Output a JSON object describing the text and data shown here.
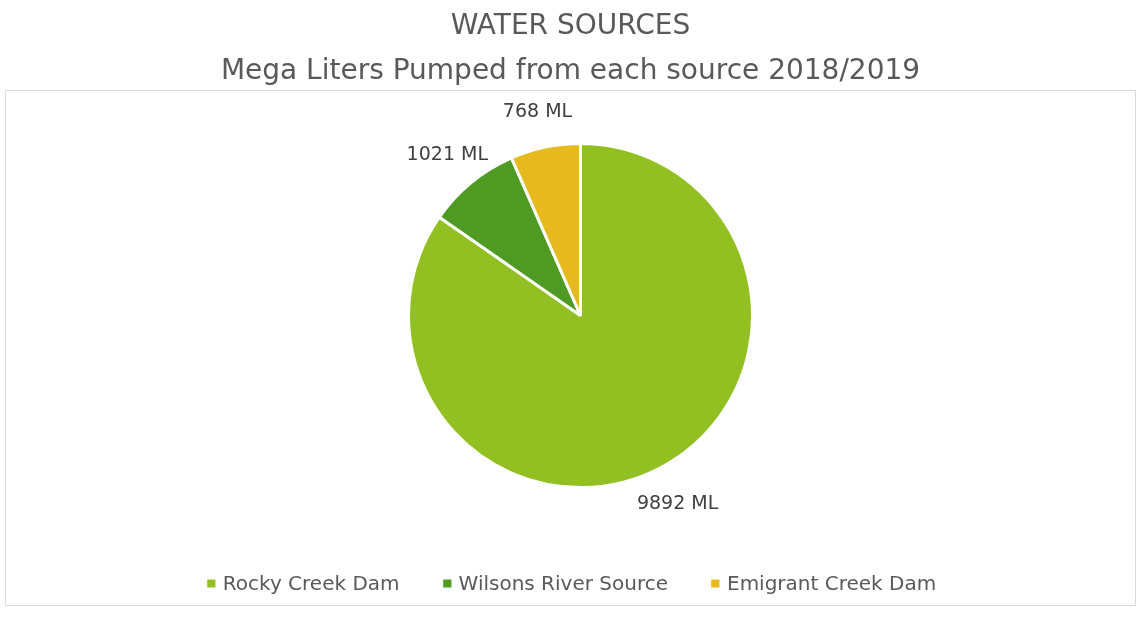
{
  "chart_data": {
    "type": "pie",
    "title": "WATER SOURCES",
    "subtitle": "Mega Liters Pumped from each source 2018/2019",
    "categories": [
      "Rocky Creek Dam",
      "Wilsons River Source",
      "Emigrant Creek Dam"
    ],
    "values": [
      9892,
      1021,
      768
    ],
    "colors": [
      "#92c023",
      "#4e9a23",
      "#e6b91e"
    ],
    "value_labels": [
      "9892 ML",
      "1021 ML",
      "768 ML"
    ],
    "legend": "bottom"
  }
}
